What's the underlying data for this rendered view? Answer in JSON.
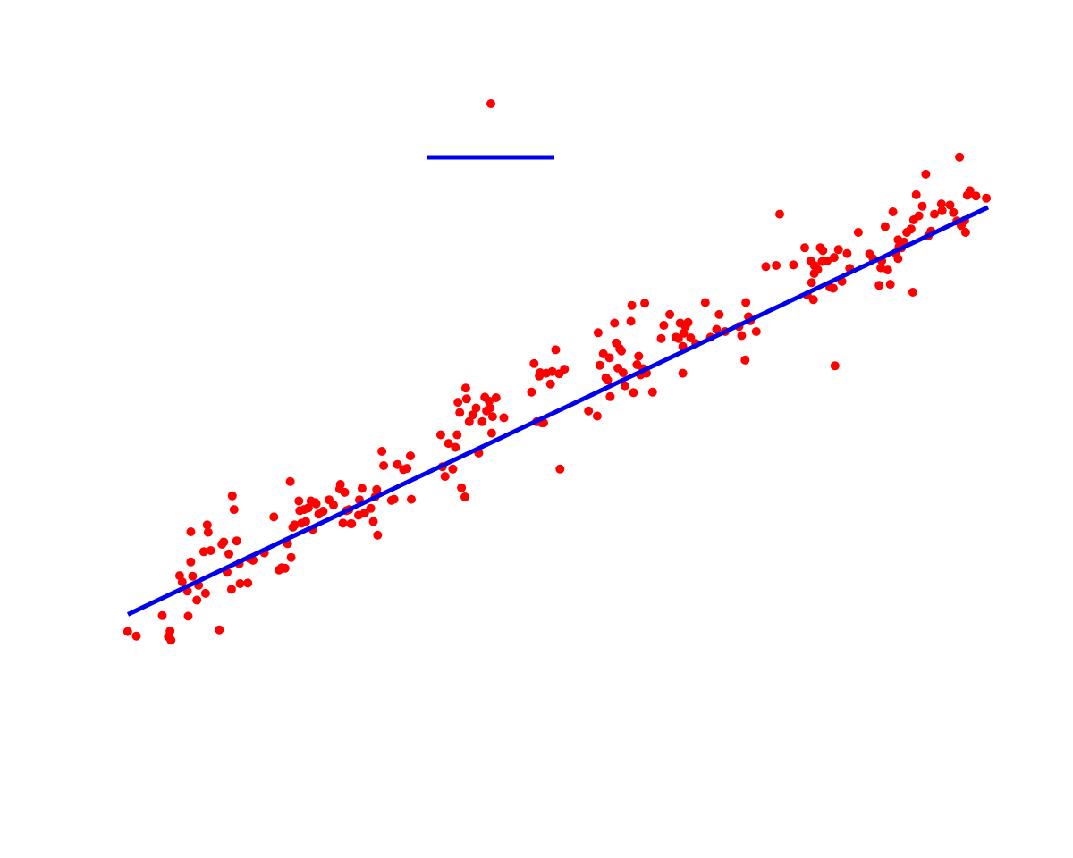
{
  "colors": {
    "background": "#ffffff",
    "points": "#ff0000",
    "fit_line": "#0000ee"
  },
  "chart_data": {
    "type": "scatter",
    "title": "",
    "xlabel": "",
    "ylabel": "",
    "xlim": [
      0,
      1
    ],
    "ylim": [
      0,
      1
    ],
    "grid": false,
    "legend_position": "top-center",
    "legend_items": [
      {
        "kind": "marker",
        "color": "#ff0000",
        "label": ""
      },
      {
        "kind": "line",
        "color": "#0000ee",
        "label": ""
      }
    ],
    "series": [
      {
        "kind": "scatter",
        "color": "#ff0000",
        "points": [
          [
            0.005,
            0.068
          ],
          [
            0.015,
            0.06
          ],
          [
            0.045,
            0.096
          ],
          [
            0.052,
            0.059
          ],
          [
            0.054,
            0.069
          ],
          [
            0.055,
            0.053
          ],
          [
            0.065,
            0.166
          ],
          [
            0.068,
            0.155
          ],
          [
            0.074,
            0.139
          ],
          [
            0.075,
            0.095
          ],
          [
            0.078,
            0.243
          ],
          [
            0.078,
            0.19
          ],
          [
            0.08,
            0.165
          ],
          [
            0.085,
            0.123
          ],
          [
            0.087,
            0.149
          ],
          [
            0.093,
            0.208
          ],
          [
            0.095,
            0.135
          ],
          [
            0.097,
            0.255
          ],
          [
            0.098,
            0.242
          ],
          [
            0.101,
            0.21
          ],
          [
            0.111,
            0.071
          ],
          [
            0.114,
            0.221
          ],
          [
            0.116,
            0.225
          ],
          [
            0.12,
            0.172
          ],
          [
            0.122,
            0.204
          ],
          [
            0.125,
            0.142
          ],
          [
            0.126,
            0.306
          ],
          [
            0.128,
            0.282
          ],
          [
            0.131,
            0.227
          ],
          [
            0.134,
            0.187
          ],
          [
            0.135,
            0.152
          ],
          [
            0.144,
            0.153
          ],
          [
            0.146,
            0.196
          ],
          [
            0.15,
            0.193
          ],
          [
            0.163,
            0.206
          ],
          [
            0.174,
            0.269
          ],
          [
            0.18,
            0.176
          ],
          [
            0.183,
            0.18
          ],
          [
            0.187,
            0.179
          ],
          [
            0.19,
            0.222
          ],
          [
            0.193,
            0.331
          ],
          [
            0.194,
            0.198
          ],
          [
            0.196,
            0.251
          ],
          [
            0.198,
            0.255
          ],
          [
            0.203,
            0.297
          ],
          [
            0.204,
            0.28
          ],
          [
            0.206,
            0.258
          ],
          [
            0.209,
            0.282
          ],
          [
            0.211,
            0.261
          ],
          [
            0.214,
            0.285
          ],
          [
            0.217,
            0.297
          ],
          [
            0.219,
            0.247
          ],
          [
            0.222,
            0.294
          ],
          [
            0.223,
            0.292
          ],
          [
            0.226,
            0.274
          ],
          [
            0.231,
            0.279
          ],
          [
            0.238,
            0.299
          ],
          [
            0.243,
            0.29
          ],
          [
            0.25,
            0.318
          ],
          [
            0.251,
            0.326
          ],
          [
            0.254,
            0.258
          ],
          [
            0.256,
            0.312
          ],
          [
            0.258,
            0.28
          ],
          [
            0.261,
            0.282
          ],
          [
            0.263,
            0.257
          ],
          [
            0.264,
            0.257
          ],
          [
            0.272,
            0.272
          ],
          [
            0.273,
            0.299
          ],
          [
            0.276,
            0.319
          ],
          [
            0.279,
            0.276
          ],
          [
            0.286,
            0.284
          ],
          [
            0.289,
            0.261
          ],
          [
            0.291,
            0.304
          ],
          [
            0.293,
            0.317
          ],
          [
            0.294,
            0.237
          ],
          [
            0.299,
            0.384
          ],
          [
            0.301,
            0.359
          ],
          [
            0.31,
            0.298
          ],
          [
            0.313,
            0.3
          ],
          [
            0.317,
            0.361
          ],
          [
            0.324,
            0.352
          ],
          [
            0.328,
            0.354
          ],
          [
            0.332,
            0.376
          ],
          [
            0.333,
            0.3
          ],
          [
            0.367,
            0.413
          ],
          [
            0.369,
            0.357
          ],
          [
            0.372,
            0.34
          ],
          [
            0.376,
            0.398
          ],
          [
            0.381,
            0.353
          ],
          [
            0.384,
            0.391
          ],
          [
            0.386,
            0.413
          ],
          [
            0.387,
            0.47
          ],
          [
            0.389,
            0.452
          ],
          [
            0.391,
            0.32
          ],
          [
            0.395,
            0.304
          ],
          [
            0.396,
            0.495
          ],
          [
            0.397,
            0.476
          ],
          [
            0.4,
            0.436
          ],
          [
            0.404,
            0.448
          ],
          [
            0.408,
            0.46
          ],
          [
            0.411,
            0.381
          ],
          [
            0.415,
            0.436
          ],
          [
            0.418,
            0.479
          ],
          [
            0.42,
            0.455
          ],
          [
            0.423,
            0.472
          ],
          [
            0.424,
            0.46
          ],
          [
            0.426,
            0.416
          ],
          [
            0.427,
            0.445
          ],
          [
            0.431,
            0.478
          ],
          [
            0.44,
            0.443
          ],
          [
            0.472,
            0.488
          ],
          [
            0.475,
            0.538
          ],
          [
            0.478,
            0.436
          ],
          [
            0.481,
            0.516
          ],
          [
            0.482,
            0.522
          ],
          [
            0.484,
            0.434
          ],
          [
            0.486,
            0.434
          ],
          [
            0.489,
            0.521
          ],
          [
            0.494,
            0.502
          ],
          [
            0.496,
            0.524
          ],
          [
            0.5,
            0.562
          ],
          [
            0.504,
            0.52
          ],
          [
            0.505,
            0.353
          ],
          [
            0.51,
            0.528
          ],
          [
            0.538,
            0.455
          ],
          [
            0.548,
            0.446
          ],
          [
            0.549,
            0.592
          ],
          [
            0.551,
            0.535
          ],
          [
            0.555,
            0.555
          ],
          [
            0.558,
            0.513
          ],
          [
            0.56,
            0.509
          ],
          [
            0.562,
            0.548
          ],
          [
            0.563,
            0.48
          ],
          [
            0.568,
            0.609
          ],
          [
            0.57,
            0.574
          ],
          [
            0.572,
            0.53
          ],
          [
            0.574,
            0.564
          ],
          [
            0.576,
            0.56
          ],
          [
            0.578,
            0.522
          ],
          [
            0.58,
            0.499
          ],
          [
            0.587,
            0.612
          ],
          [
            0.588,
            0.64
          ],
          [
            0.59,
            0.487
          ],
          [
            0.594,
            0.536
          ],
          [
            0.596,
            0.551
          ],
          [
            0.598,
            0.518
          ],
          [
            0.601,
            0.529
          ],
          [
            0.603,
            0.644
          ],
          [
            0.605,
            0.521
          ],
          [
            0.612,
            0.488
          ],
          [
            0.622,
            0.582
          ],
          [
            0.625,
            0.605
          ],
          [
            0.632,
            0.624
          ],
          [
            0.639,
            0.584
          ],
          [
            0.642,
            0.582
          ],
          [
            0.644,
            0.609
          ],
          [
            0.647,
            0.521
          ],
          [
            0.647,
            0.568
          ],
          [
            0.648,
            0.591
          ],
          [
            0.65,
            0.603
          ],
          [
            0.653,
            0.61
          ],
          [
            0.656,
            0.583
          ],
          [
            0.662,
            0.573
          ],
          [
            0.673,
            0.645
          ],
          [
            0.679,
            0.584
          ],
          [
            0.686,
            0.598
          ],
          [
            0.689,
            0.624
          ],
          [
            0.696,
            0.594
          ],
          [
            0.712,
            0.603
          ],
          [
            0.715,
            0.587
          ],
          [
            0.719,
            0.544
          ],
          [
            0.72,
            0.645
          ],
          [
            0.723,
            0.62
          ],
          [
            0.725,
            0.613
          ],
          [
            0.732,
            0.594
          ],
          [
            0.743,
            0.708
          ],
          [
            0.755,
            0.71
          ],
          [
            0.759,
            0.8
          ],
          [
            0.775,
            0.711
          ],
          [
            0.788,
            0.741
          ],
          [
            0.791,
            0.658
          ],
          [
            0.795,
            0.718
          ],
          [
            0.796,
            0.68
          ],
          [
            0.798,
            0.65
          ],
          [
            0.799,
            0.71
          ],
          [
            0.799,
            0.696
          ],
          [
            0.803,
            0.703
          ],
          [
            0.806,
            0.741
          ],
          [
            0.808,
            0.717
          ],
          [
            0.809,
            0.736
          ],
          [
            0.814,
            0.718
          ],
          [
            0.817,
            0.672
          ],
          [
            0.821,
            0.67
          ],
          [
            0.822,
            0.724
          ],
          [
            0.823,
            0.534
          ],
          [
            0.827,
            0.738
          ],
          [
            0.831,
            0.682
          ],
          [
            0.837,
            0.731
          ],
          [
            0.84,
            0.705
          ],
          [
            0.85,
            0.768
          ],
          [
            0.863,
            0.73
          ],
          [
            0.867,
            0.722
          ],
          [
            0.874,
            0.675
          ],
          [
            0.876,
            0.706
          ],
          [
            0.877,
            0.718
          ],
          [
            0.881,
            0.778
          ],
          [
            0.884,
            0.702
          ],
          [
            0.887,
            0.677
          ],
          [
            0.89,
            0.804
          ],
          [
            0.893,
            0.732
          ],
          [
            0.896,
            0.755
          ],
          [
            0.896,
            0.722
          ],
          [
            0.897,
            0.743
          ],
          [
            0.9,
            0.741
          ],
          [
            0.903,
            0.751
          ],
          [
            0.906,
            0.768
          ],
          [
            0.911,
            0.774
          ],
          [
            0.913,
            0.663
          ],
          [
            0.914,
            0.79
          ],
          [
            0.917,
            0.834
          ],
          [
            0.92,
            0.797
          ],
          [
            0.924,
            0.814
          ],
          [
            0.928,
            0.87
          ],
          [
            0.931,
            0.762
          ],
          [
            0.934,
            0.77
          ],
          [
            0.938,
            0.8
          ],
          [
            0.946,
            0.818
          ],
          [
            0.947,
            0.806
          ],
          [
            0.956,
            0.816
          ],
          [
            0.96,
            0.803
          ],
          [
            0.964,
            0.788
          ],
          [
            0.967,
            0.9
          ],
          [
            0.969,
            0.78
          ],
          [
            0.973,
            0.789
          ],
          [
            0.974,
            0.768
          ],
          [
            0.976,
            0.833
          ],
          [
            0.979,
            0.841
          ],
          [
            0.986,
            0.832
          ],
          [
            0.998,
            0.828
          ]
        ]
      },
      {
        "kind": "line",
        "color": "#0000ee",
        "x": [
          0.0,
          1.0
        ],
        "y": [
          0.098,
          0.812
        ]
      }
    ]
  }
}
